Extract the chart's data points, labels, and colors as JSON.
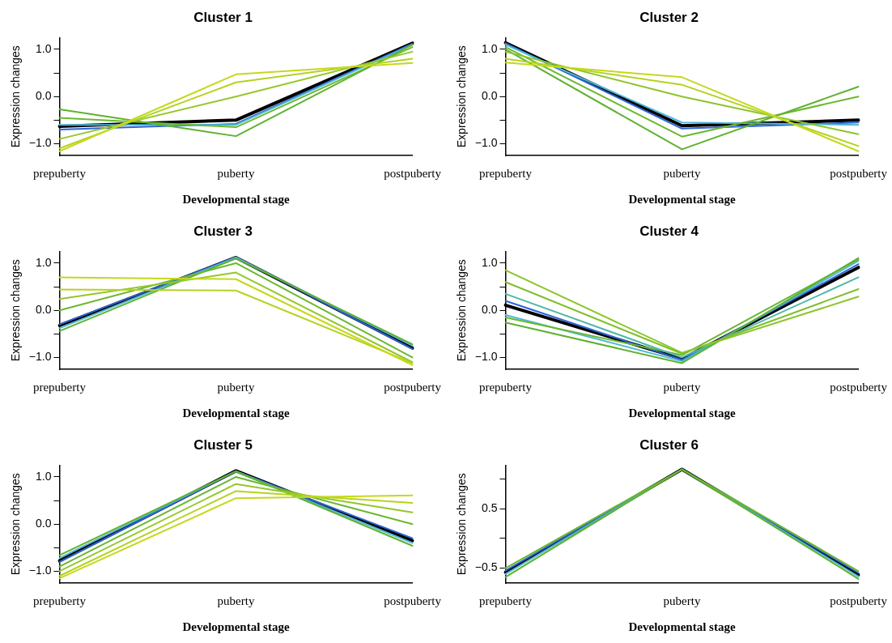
{
  "chart_data": [
    {
      "type": "line",
      "title": "Cluster 1",
      "xlabel": "Developmental stage",
      "ylabel": "Expression changes",
      "categories": [
        "prepuberty",
        "puberty",
        "postpuberty"
      ],
      "ylim": [
        -1.25,
        1.25
      ],
      "yticks": [
        {
          "value": -1.0,
          "label": "−1.0"
        },
        {
          "value": -0.5,
          "label": null
        },
        {
          "value": 0.0,
          "label": "0.0"
        },
        {
          "value": 0.5,
          "label": null
        },
        {
          "value": 1.0,
          "label": "1.0"
        }
      ],
      "legend": false,
      "grid": false,
      "marker": "none",
      "line_style": "solid",
      "series": [
        {
          "color": "#c5d81c",
          "values": [
            -1.16,
            0.47,
            0.71
          ]
        },
        {
          "color": "#b4d321",
          "values": [
            -1.1,
            0.3,
            0.8
          ]
        },
        {
          "color": "#94c72a",
          "values": [
            -0.9,
            0.0,
            0.95
          ]
        },
        {
          "color": "#5fb22e",
          "values": [
            -0.27,
            -0.84,
            1.1
          ]
        },
        {
          "color": "#6ab830",
          "values": [
            -0.45,
            -0.65,
            1.05
          ]
        },
        {
          "color": "#4fb8d6",
          "values": [
            -0.6,
            -0.6,
            1.1
          ]
        },
        {
          "color": "#2f63d4",
          "values": [
            -0.7,
            -0.58,
            1.12
          ]
        },
        {
          "color": "#000000",
          "values": [
            -0.63,
            -0.5,
            1.13
          ]
        }
      ]
    },
    {
      "type": "line",
      "title": "Cluster 2",
      "xlabel": "Developmental stage",
      "ylabel": "Expression changes",
      "categories": [
        "prepuberty",
        "puberty",
        "postpuberty"
      ],
      "ylim": [
        -1.25,
        1.25
      ],
      "yticks": [
        {
          "value": -1.0,
          "label": "−1.0"
        },
        {
          "value": -0.5,
          "label": null
        },
        {
          "value": 0.0,
          "label": "0.0"
        },
        {
          "value": 0.5,
          "label": null
        },
        {
          "value": 1.0,
          "label": "1.0"
        }
      ],
      "legend": false,
      "grid": false,
      "marker": "none",
      "line_style": "solid",
      "series": [
        {
          "color": "#c5d81c",
          "values": [
            0.72,
            0.41,
            -1.16
          ]
        },
        {
          "color": "#b4d321",
          "values": [
            0.8,
            0.25,
            -1.05
          ]
        },
        {
          "color": "#8cc42a",
          "values": [
            0.95,
            0.0,
            -0.8
          ]
        },
        {
          "color": "#5fb22e",
          "values": [
            1.0,
            -1.12,
            0.21
          ]
        },
        {
          "color": "#6ab830",
          "values": [
            1.05,
            -0.85,
            0.0
          ]
        },
        {
          "color": "#4fb8d6",
          "values": [
            1.1,
            -0.55,
            -0.6
          ]
        },
        {
          "color": "#2f63d4",
          "values": [
            1.13,
            -0.68,
            -0.55
          ]
        },
        {
          "color": "#000000",
          "values": [
            1.14,
            -0.62,
            -0.5
          ]
        }
      ]
    },
    {
      "type": "line",
      "title": "Cluster 3",
      "xlabel": "Developmental stage",
      "ylabel": "Expression changes",
      "categories": [
        "prepuberty",
        "puberty",
        "postpuberty"
      ],
      "ylim": [
        -1.25,
        1.25
      ],
      "yticks": [
        {
          "value": -1.0,
          "label": "−1.0"
        },
        {
          "value": -0.5,
          "label": null
        },
        {
          "value": 0.0,
          "label": "0.0"
        },
        {
          "value": 0.5,
          "label": null
        },
        {
          "value": 1.0,
          "label": "1.0"
        }
      ],
      "legend": false,
      "grid": false,
      "marker": "none",
      "line_style": "solid",
      "series": [
        {
          "color": "#c5d81c",
          "values": [
            0.7,
            0.66,
            -1.16
          ]
        },
        {
          "color": "#b4d321",
          "values": [
            0.44,
            0.42,
            -1.12
          ]
        },
        {
          "color": "#94c72a",
          "values": [
            0.24,
            0.8,
            -1.1
          ]
        },
        {
          "color": "#6ab830",
          "values": [
            0.0,
            1.0,
            -1.0
          ]
        },
        {
          "color": "#5fb22e",
          "values": [
            -0.44,
            1.1,
            -0.72
          ]
        },
        {
          "color": "#4fb8d6",
          "values": [
            -0.38,
            1.12,
            -0.75
          ]
        },
        {
          "color": "#2f63d4",
          "values": [
            -0.3,
            1.13,
            -0.82
          ]
        },
        {
          "color": "#000000",
          "values": [
            -0.32,
            1.12,
            -0.8
          ]
        }
      ]
    },
    {
      "type": "line",
      "title": "Cluster 4",
      "xlabel": "Developmental stage",
      "ylabel": "Expression changes",
      "categories": [
        "prepuberty",
        "puberty",
        "postpuberty"
      ],
      "ylim": [
        -1.25,
        1.25
      ],
      "yticks": [
        {
          "value": -1.0,
          "label": "−1.0"
        },
        {
          "value": -0.5,
          "label": null
        },
        {
          "value": 0.0,
          "label": "0.0"
        },
        {
          "value": 0.5,
          "label": null
        },
        {
          "value": 1.0,
          "label": "1.0"
        }
      ],
      "legend": false,
      "grid": false,
      "marker": "none",
      "line_style": "solid",
      "series": [
        {
          "color": "#8cc42a",
          "values": [
            0.85,
            -0.9,
            0.29
          ]
        },
        {
          "color": "#7fbf2c",
          "values": [
            0.6,
            -0.92,
            0.45
          ]
        },
        {
          "color": "#4fb8a6",
          "values": [
            0.35,
            -1.0,
            0.7
          ]
        },
        {
          "color": "#5fb22e",
          "values": [
            -0.26,
            -1.12,
            1.11
          ]
        },
        {
          "color": "#6ab830",
          "values": [
            -0.15,
            -0.95,
            1.08
          ]
        },
        {
          "color": "#4fb8d6",
          "values": [
            -0.1,
            -1.08,
            1.05
          ]
        },
        {
          "color": "#2f63d4",
          "values": [
            0.2,
            -1.05,
            0.98
          ]
        },
        {
          "color": "#000000",
          "values": [
            0.11,
            -1.03,
            0.91
          ]
        }
      ]
    },
    {
      "type": "line",
      "title": "Cluster 5",
      "xlabel": "Developmental stage",
      "ylabel": "Expression changes",
      "categories": [
        "prepuberty",
        "puberty",
        "postpuberty"
      ],
      "ylim": [
        -1.25,
        1.25
      ],
      "yticks": [
        {
          "value": -1.0,
          "label": "−1.0"
        },
        {
          "value": -0.5,
          "label": null
        },
        {
          "value": 0.0,
          "label": "0.0"
        },
        {
          "value": 0.5,
          "label": null
        },
        {
          "value": 1.0,
          "label": "1.0"
        }
      ],
      "legend": false,
      "grid": false,
      "marker": "none",
      "line_style": "solid",
      "series": [
        {
          "color": "#c5d81c",
          "values": [
            -1.15,
            0.55,
            0.61
          ]
        },
        {
          "color": "#b4d321",
          "values": [
            -1.1,
            0.7,
            0.45
          ]
        },
        {
          "color": "#94c72a",
          "values": [
            -1.0,
            0.85,
            0.25
          ]
        },
        {
          "color": "#6ab830",
          "values": [
            -0.9,
            1.0,
            0.0
          ]
        },
        {
          "color": "#5fb22e",
          "values": [
            -0.66,
            1.12,
            -0.46
          ]
        },
        {
          "color": "#4fb8d6",
          "values": [
            -0.72,
            1.12,
            -0.4
          ]
        },
        {
          "color": "#2f63d4",
          "values": [
            -0.8,
            1.12,
            -0.3
          ]
        },
        {
          "color": "#000000",
          "values": [
            -0.78,
            1.13,
            -0.35
          ]
        }
      ]
    },
    {
      "type": "line",
      "title": "Cluster 6",
      "xlabel": "Developmental stage",
      "ylabel": "Expression changes",
      "categories": [
        "prepuberty",
        "puberty",
        "postpuberty"
      ],
      "ylim": [
        -0.75,
        1.23
      ],
      "yticks": [
        {
          "value": -0.5,
          "label": "−0.5"
        },
        {
          "value": 0.0,
          "label": null
        },
        {
          "value": 0.5,
          "label": "0.5"
        },
        {
          "value": 1.0,
          "label": null
        }
      ],
      "legend": false,
      "grid": false,
      "marker": "none",
      "line_style": "solid",
      "series": [
        {
          "color": "#6ab830",
          "values": [
            -0.5,
            1.16,
            -0.55
          ]
        },
        {
          "color": "#5fb22e",
          "values": [
            -0.65,
            1.16,
            -0.68
          ]
        },
        {
          "color": "#4fb8d6",
          "values": [
            -0.6,
            1.16,
            -0.64
          ]
        },
        {
          "color": "#2f63d4",
          "values": [
            -0.54,
            1.16,
            -0.58
          ]
        },
        {
          "color": "#000000",
          "values": [
            -0.57,
            1.16,
            -0.61
          ]
        }
      ]
    }
  ]
}
